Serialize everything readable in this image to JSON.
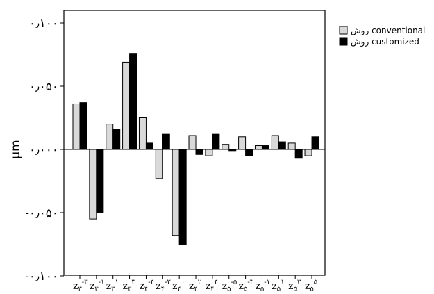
{
  "chart_data": {
    "type": "bar",
    "ylabel": "µm",
    "ylim": [
      -0.1,
      0.1
    ],
    "yticks": [
      {
        "value": 0.1,
        "label": "۰٫۱۰۰"
      },
      {
        "value": 0.05,
        "label": "۰٫۰۵۰"
      },
      {
        "value": 0,
        "label": "۰٫۰۰۰"
      },
      {
        "value": -0.05,
        "label": "-۰٫۰۵۰"
      },
      {
        "value": -0.1,
        "label": "-۰٫۱۰۰"
      }
    ],
    "categories": [
      {
        "base": "z",
        "sub": "۳",
        "sup": "-۳"
      },
      {
        "base": "z",
        "sub": "۳",
        "sup": "-۱"
      },
      {
        "base": "z",
        "sub": "۳",
        "sup": "۱"
      },
      {
        "base": "z",
        "sub": "۳",
        "sup": "۳"
      },
      {
        "base": "z",
        "sub": "۴",
        "sup": "-۴"
      },
      {
        "base": "z",
        "sub": "۴",
        "sup": "-۲"
      },
      {
        "base": "z",
        "sub": "۴",
        "sup": "۰"
      },
      {
        "base": "z",
        "sub": "۴",
        "sup": "۲"
      },
      {
        "base": "z",
        "sub": "۴",
        "sup": "۴"
      },
      {
        "base": "z",
        "sub": "۵",
        "sup": "-۵"
      },
      {
        "base": "z",
        "sub": "۵",
        "sup": "-۳"
      },
      {
        "base": "z",
        "sub": "۵",
        "sup": "-۱"
      },
      {
        "base": "z",
        "sub": "۵",
        "sup": "۱"
      },
      {
        "base": "z",
        "sub": "۵",
        "sup": "۳"
      },
      {
        "base": "z",
        "sub": "۵",
        "sup": "۵"
      }
    ],
    "series": [
      {
        "name": "روش conventional",
        "color": "#d9d9d9",
        "values": [
          0.036,
          -0.055,
          0.02,
          0.069,
          0.025,
          -0.023,
          -0.068,
          0.011,
          -0.005,
          0.004,
          0.01,
          0.003,
          0.011,
          0.005,
          -0.005
        ]
      },
      {
        "name": "روش customized",
        "color": "#000000",
        "values": [
          0.037,
          -0.05,
          0.016,
          0.076,
          0.005,
          0.012,
          -0.075,
          -0.004,
          0.012,
          -0.001,
          -0.005,
          0.003,
          0.006,
          -0.007,
          0.01
        ]
      }
    ],
    "legend": "top-right",
    "grid": false
  }
}
